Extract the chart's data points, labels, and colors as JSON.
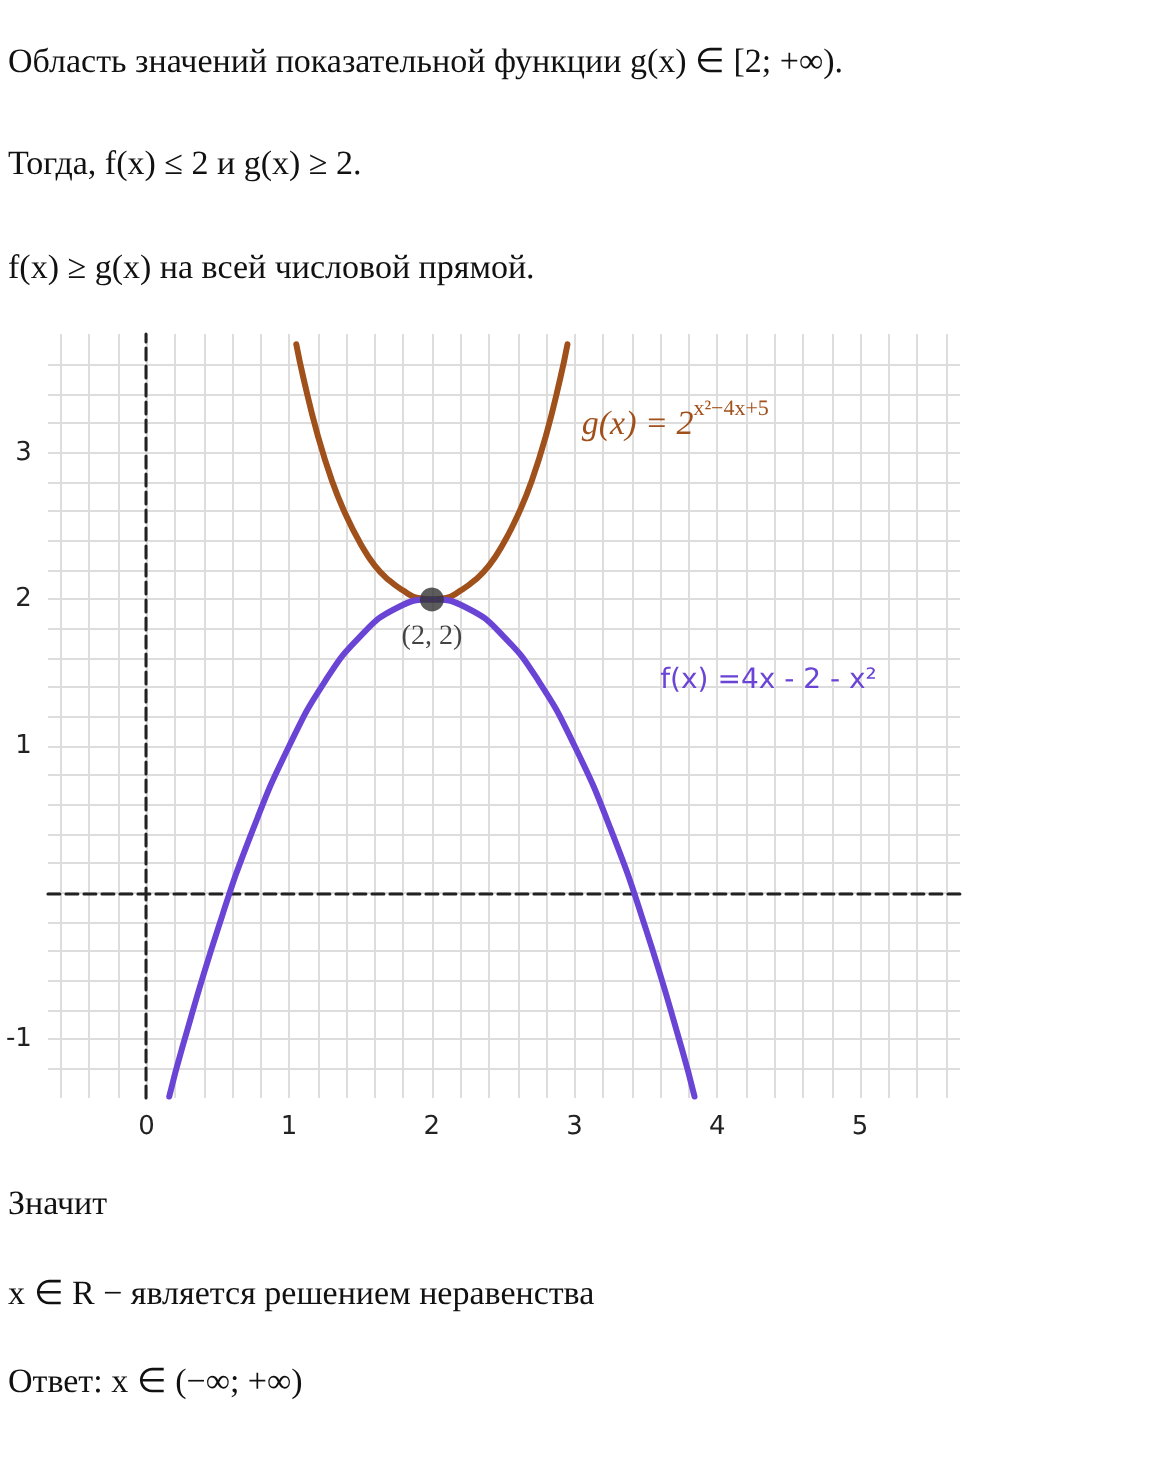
{
  "chart_data": {
    "type": "line",
    "annotations": [
      "Область значений показательной функции g(x) ∈ [2; +∞).",
      "Тогда, f(x) ≤ 2 и g(x) ≥ 2.",
      "f(x) ≥ g(x) на всей числовой прямой.",
      {
        "text": "(2, 2)",
        "x": 2,
        "y": 2
      },
      "Значит",
      "x ∈ R − является решением неравенства",
      "Ответ: x ∈ (−∞; +∞)"
    ],
    "series": [
      {
        "name": "g(x) = 2$^{x²−4x+5}$",
        "color": "#a0501a",
        "x": [
          1.05,
          1.1,
          1.2,
          1.3,
          1.4,
          1.5,
          1.6,
          1.7,
          1.8,
          1.9,
          2,
          2.1,
          2.2,
          2.3,
          2.4,
          2.5,
          2.6,
          2.7,
          2.8,
          2.9,
          2.95
        ],
        "values": [
          3.74,
          3.51,
          3.12,
          2.81,
          2.57,
          2.38,
          2.23,
          2.13,
          2.06,
          2.01,
          2,
          2.01,
          2.06,
          2.13,
          2.23,
          2.38,
          2.57,
          2.81,
          3.12,
          3.51,
          3.74
        ]
      },
      {
        "name": "f(x) =4x - 2 - x²",
        "color": "#6a44d4",
        "x": [
          0.16,
          0.25,
          0.5,
          0.75,
          1,
          1.25,
          1.5,
          1.75,
          2,
          2.25,
          2.5,
          2.75,
          3,
          3.25,
          3.5,
          3.75,
          3.84
        ],
        "values": [
          -1.39,
          -1.06,
          -0.25,
          0.44,
          1,
          1.44,
          1.75,
          1.94,
          2,
          1.94,
          1.75,
          1.44,
          1,
          0.44,
          -0.25,
          -1.06,
          -1.39
        ]
      },
      {
        "type": "scatter",
        "marker": "circle",
        "color": "#333333",
        "x": [
          2
        ],
        "values": [
          2
        ]
      }
    ],
    "xlim": [
      -0.69,
      5.7
    ],
    "ylim": [
      -1.4,
      3.81
    ],
    "xticks": [
      {
        "value": -0.6,
        "label": null
      },
      {
        "value": -0.4,
        "label": null
      },
      {
        "value": -0.2,
        "label": null
      },
      0,
      {
        "value": 0.2,
        "label": null
      },
      {
        "value": 0.4,
        "label": null
      },
      {
        "value": 0.6,
        "label": null
      },
      {
        "value": 0.8,
        "label": null
      },
      1,
      {
        "value": 1.2,
        "label": null
      },
      {
        "value": 1.4,
        "label": null
      },
      {
        "value": 1.6,
        "label": null
      },
      {
        "value": 1.8,
        "label": null
      },
      2,
      {
        "value": 2.2,
        "label": null
      },
      {
        "value": 2.4,
        "label": null
      },
      {
        "value": 2.6,
        "label": null
      },
      {
        "value": 2.8,
        "label": null
      },
      3,
      {
        "value": 3.2,
        "label": null
      },
      {
        "value": 3.4,
        "label": null
      },
      {
        "value": 3.6,
        "label": null
      },
      {
        "value": 3.8,
        "label": null
      },
      4,
      {
        "value": 4.2,
        "label": null
      },
      {
        "value": 4.4,
        "label": null
      },
      {
        "value": 4.6,
        "label": null
      },
      {
        "value": 4.8,
        "label": null
      },
      5,
      {
        "value": 5.2,
        "label": null
      },
      {
        "value": 5.4,
        "label": null
      },
      {
        "value": 5.6,
        "label": null
      }
    ],
    "yticks": [
      {
        "value": -1.2,
        "label": null
      },
      -1,
      {
        "value": -0.8,
        "label": null
      },
      {
        "value": -0.6,
        "label": null
      },
      {
        "value": -0.4,
        "label": null
      },
      {
        "value": -0.2,
        "label": null
      },
      {
        "value": 0,
        "label": null
      },
      {
        "value": 0.2,
        "label": null
      },
      {
        "value": 0.4,
        "label": null
      },
      {
        "value": 0.6,
        "label": null
      },
      {
        "value": 0.8,
        "label": null
      },
      1,
      {
        "value": 1.2,
        "label": null
      },
      {
        "value": 1.4,
        "label": null
      },
      {
        "value": 1.6,
        "label": null
      },
      {
        "value": 1.8,
        "label": null
      },
      2,
      {
        "value": 2.2,
        "label": null
      },
      {
        "value": 2.4,
        "label": null
      },
      {
        "value": 2.6,
        "label": null
      },
      {
        "value": 2.8,
        "label": null
      },
      3,
      {
        "value": 3.2,
        "label": null
      },
      {
        "value": 3.4,
        "label": null
      },
      {
        "value": 3.6,
        "label": null
      }
    ],
    "grid": true,
    "marker": "none",
    "line_style": "solid"
  }
}
